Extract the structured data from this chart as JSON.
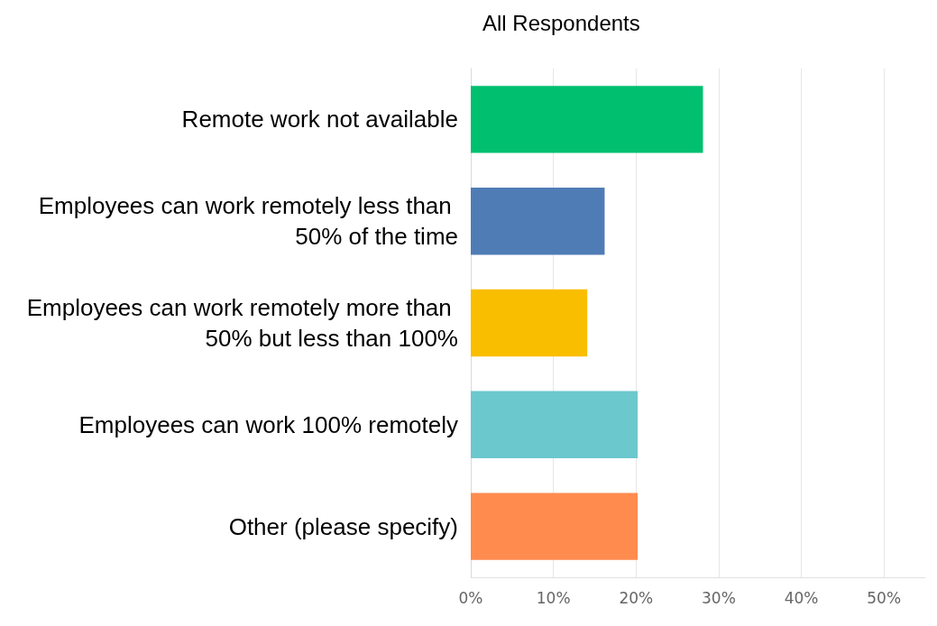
{
  "chart_data": {
    "type": "bar",
    "orientation": "horizontal",
    "title": "All Respondents",
    "categories": [
      "Remote work not available",
      "Employees can work remotely less than 50% of the time",
      "Employees can work remotely more than 50% but less than 100%",
      "Employees can work 100% remotely",
      "Other (please specify)"
    ],
    "values": [
      28.1,
      16.2,
      14.1,
      20.2,
      20.2
    ],
    "colors": [
      "#00bf6f",
      "#507cb6",
      "#f9be00",
      "#6bc8cd",
      "#ff8b4f"
    ],
    "xlim": [
      0,
      55
    ],
    "xticks": [
      {
        "value": 0,
        "label": "0%"
      },
      {
        "value": 10,
        "label": "10%"
      },
      {
        "value": 20,
        "label": "20%"
      },
      {
        "value": 30,
        "label": "30%"
      },
      {
        "value": 40,
        "label": "40%"
      },
      {
        "value": 50,
        "label": "50%"
      }
    ],
    "grid": "x"
  }
}
